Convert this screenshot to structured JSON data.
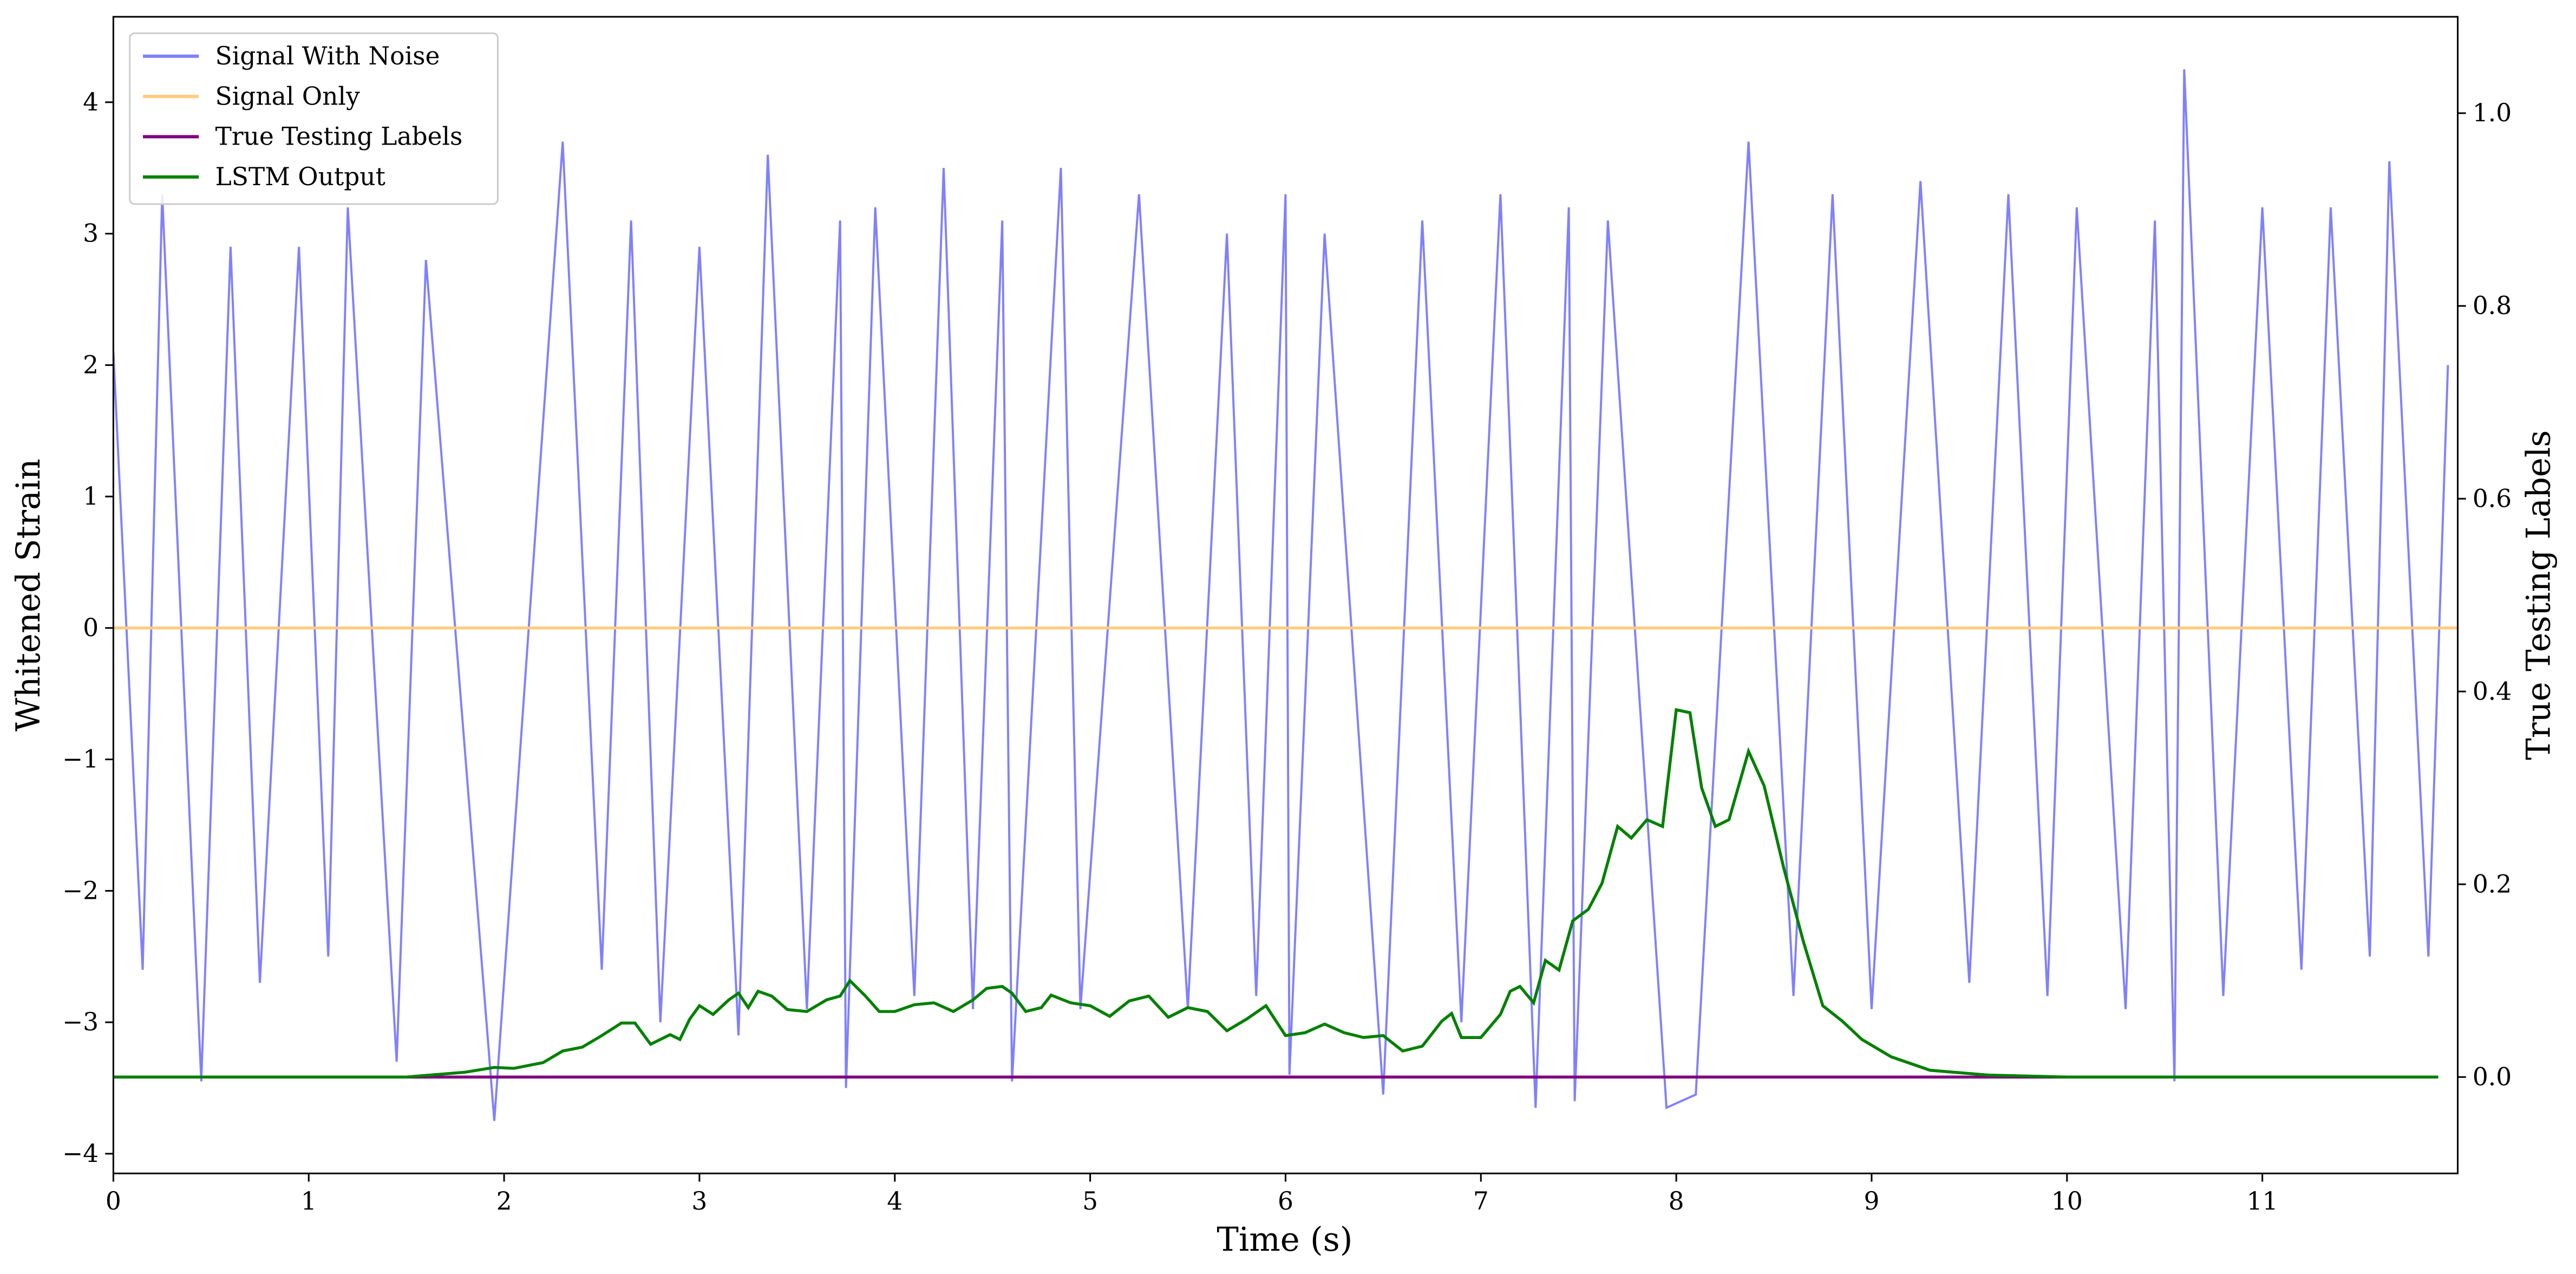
{
  "chart_data": {
    "type": "line",
    "x_label": "Time (s)",
    "y_label": "Whitened Strain",
    "y2_label": "True Testing Labels",
    "xlim": [
      0,
      12
    ],
    "xticks": [
      0,
      1,
      2,
      3,
      4,
      5,
      6,
      7,
      8,
      9,
      10,
      11
    ],
    "ylim": [
      -4.15,
      4.65
    ],
    "yticks": [
      {
        "value": -4,
        "label": "−4"
      },
      {
        "value": -3,
        "label": "−3"
      },
      {
        "value": -2,
        "label": "−2"
      },
      {
        "value": -1,
        "label": "−1"
      },
      0,
      1,
      2,
      3,
      4
    ],
    "y2lim": [
      -0.1,
      1.1
    ],
    "y2ticks": [
      {
        "value": 0,
        "label": "0.0"
      },
      0.2,
      0.4,
      0.6,
      0.8,
      {
        "value": 1,
        "label": "1.0"
      }
    ],
    "legend": "upper-left",
    "series": [
      {
        "name": "Signal With Noise",
        "color": "#8080ff",
        "x": [
          0,
          0.15,
          0.25,
          0.45,
          0.6,
          0.75,
          0.95,
          1.1,
          1.2,
          1.45,
          1.6,
          1.95,
          2.3,
          2.5,
          2.65,
          2.8,
          3.0,
          3.2,
          3.35,
          3.55,
          3.72,
          3.75,
          3.9,
          4.1,
          4.25,
          4.4,
          4.55,
          4.6,
          4.85,
          4.95,
          5.25,
          5.5,
          5.7,
          5.85,
          6.0,
          6.02,
          6.2,
          6.5,
          6.7,
          6.9,
          7.1,
          7.28,
          7.45,
          7.48,
          7.65,
          7.95,
          8.1,
          8.37,
          8.6,
          8.8,
          9.0,
          9.25,
          9.5,
          9.7,
          9.9,
          10.05,
          10.3,
          10.45,
          10.55,
          10.6,
          10.8,
          11.0,
          11.2,
          11.35,
          11.55,
          11.65,
          11.85,
          11.95
        ],
        "values": [
          2.1,
          -2.6,
          3.3,
          -3.45,
          2.9,
          -2.7,
          2.9,
          -2.5,
          3.2,
          -3.3,
          2.8,
          -3.75,
          3.7,
          -2.6,
          3.1,
          -3.0,
          2.9,
          -3.1,
          3.6,
          -2.9,
          3.1,
          -3.5,
          3.2,
          -2.8,
          3.5,
          -2.9,
          3.1,
          -3.45,
          3.5,
          -2.9,
          3.3,
          -2.9,
          3.0,
          -2.8,
          3.3,
          -3.4,
          3.0,
          -3.55,
          3.1,
          -3.0,
          3.3,
          -3.65,
          3.2,
          -3.6,
          3.1,
          -3.65,
          -3.55,
          3.7,
          -2.8,
          3.3,
          -2.9,
          3.4,
          -2.7,
          3.3,
          -2.8,
          3.2,
          -2.9,
          3.1,
          -3.45,
          4.25,
          -2.8,
          3.2,
          -2.6,
          3.2,
          -2.5,
          3.55,
          -2.5,
          2.0
        ]
      },
      {
        "name": "Signal Only",
        "color": "#ffcc80",
        "x": [
          0,
          12
        ],
        "values": [
          0,
          0
        ]
      },
      {
        "name": "True Testing Labels",
        "color": "#800080",
        "axis": "y2",
        "x": [
          0,
          11.9
        ],
        "values": [
          0,
          0
        ]
      },
      {
        "name": "LSTM Output",
        "color": "#008000",
        "axis": "y2",
        "x": [
          0,
          1.0,
          1.5,
          1.8,
          1.95,
          2.05,
          2.2,
          2.3,
          2.4,
          2.5,
          2.6,
          2.67,
          2.75,
          2.85,
          2.9,
          2.95,
          3.0,
          3.07,
          3.15,
          3.2,
          3.25,
          3.3,
          3.37,
          3.45,
          3.55,
          3.65,
          3.72,
          3.77,
          3.85,
          3.92,
          4.0,
          4.1,
          4.2,
          4.3,
          4.4,
          4.47,
          4.55,
          4.6,
          4.67,
          4.75,
          4.8,
          4.9,
          5.0,
          5.1,
          5.2,
          5.3,
          5.4,
          5.5,
          5.6,
          5.7,
          5.8,
          5.9,
          6.0,
          6.1,
          6.2,
          6.3,
          6.4,
          6.5,
          6.6,
          6.7,
          6.8,
          6.85,
          6.9,
          7.0,
          7.1,
          7.15,
          7.2,
          7.27,
          7.33,
          7.4,
          7.47,
          7.55,
          7.62,
          7.7,
          7.77,
          7.85,
          7.93,
          8.0,
          8.07,
          8.13,
          8.2,
          8.27,
          8.37,
          8.45,
          8.55,
          8.65,
          8.75,
          8.85,
          8.95,
          9.1,
          9.3,
          9.6,
          10.0,
          11.0,
          11.9
        ],
        "values": [
          0,
          0,
          0,
          0.005,
          0.01,
          0.009,
          0.015,
          0.027,
          0.031,
          0.043,
          0.056,
          0.056,
          0.034,
          0.044,
          0.039,
          0.06,
          0.074,
          0.065,
          0.08,
          0.087,
          0.072,
          0.089,
          0.084,
          0.07,
          0.068,
          0.08,
          0.084,
          0.1,
          0.084,
          0.068,
          0.068,
          0.075,
          0.077,
          0.068,
          0.08,
          0.092,
          0.094,
          0.087,
          0.068,
          0.072,
          0.085,
          0.077,
          0.074,
          0.063,
          0.079,
          0.084,
          0.062,
          0.072,
          0.068,
          0.048,
          0.06,
          0.074,
          0.043,
          0.046,
          0.055,
          0.046,
          0.041,
          0.043,
          0.027,
          0.032,
          0.058,
          0.066,
          0.041,
          0.041,
          0.065,
          0.089,
          0.094,
          0.077,
          0.121,
          0.111,
          0.162,
          0.174,
          0.201,
          0.26,
          0.248,
          0.267,
          0.26,
          0.381,
          0.378,
          0.3,
          0.26,
          0.267,
          0.338,
          0.302,
          0.217,
          0.141,
          0.074,
          0.058,
          0.039,
          0.021,
          0.007,
          0.002,
          0,
          0,
          0
        ]
      }
    ]
  }
}
